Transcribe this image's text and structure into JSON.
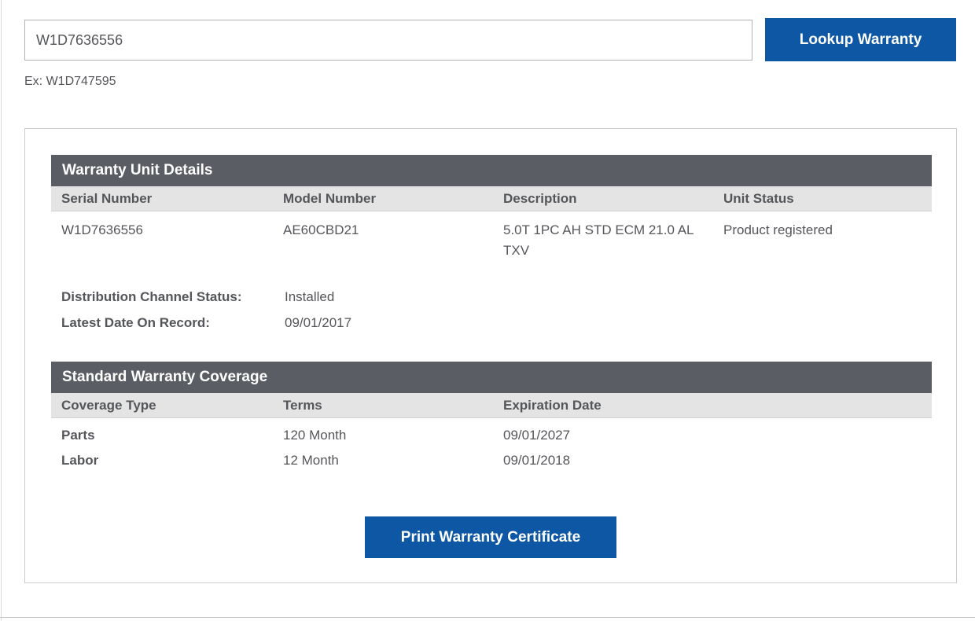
{
  "colors": {
    "accent_blue": "#0e57a5",
    "section_header_gray": "#5a5d63",
    "column_header_gray": "#e4e4e4",
    "text_gray": "#55565a",
    "card_border": "#cbcbcb"
  },
  "search": {
    "value": "W1D7636556",
    "example": "Ex: W1D747595",
    "lookup_label": "Lookup Warranty"
  },
  "unit_details": {
    "title": "Warranty Unit Details",
    "columns": [
      "Serial Number",
      "Model Number",
      "Description",
      "Unit Status"
    ],
    "rows": [
      {
        "serial": "W1D7636556",
        "model": "AE60CBD21",
        "description": "5.0T 1PC AH STD ECM 21.0 AL TXV",
        "unit_status": "Product registered"
      }
    ],
    "fields": [
      {
        "label": "Distribution Channel Status:",
        "value": "Installed"
      },
      {
        "label": "Latest Date On Record:",
        "value": "09/01/2017"
      }
    ]
  },
  "coverage": {
    "title": "Standard Warranty Coverage",
    "columns": [
      "Coverage Type",
      "Terms",
      "Expiration Date"
    ],
    "rows": [
      {
        "type": "Parts",
        "terms": "120 Month",
        "expiration": "09/01/2027"
      },
      {
        "type": "Labor",
        "terms": "12 Month",
        "expiration": "09/01/2018"
      }
    ]
  },
  "actions": {
    "print_label": "Print Warranty Certificate"
  }
}
